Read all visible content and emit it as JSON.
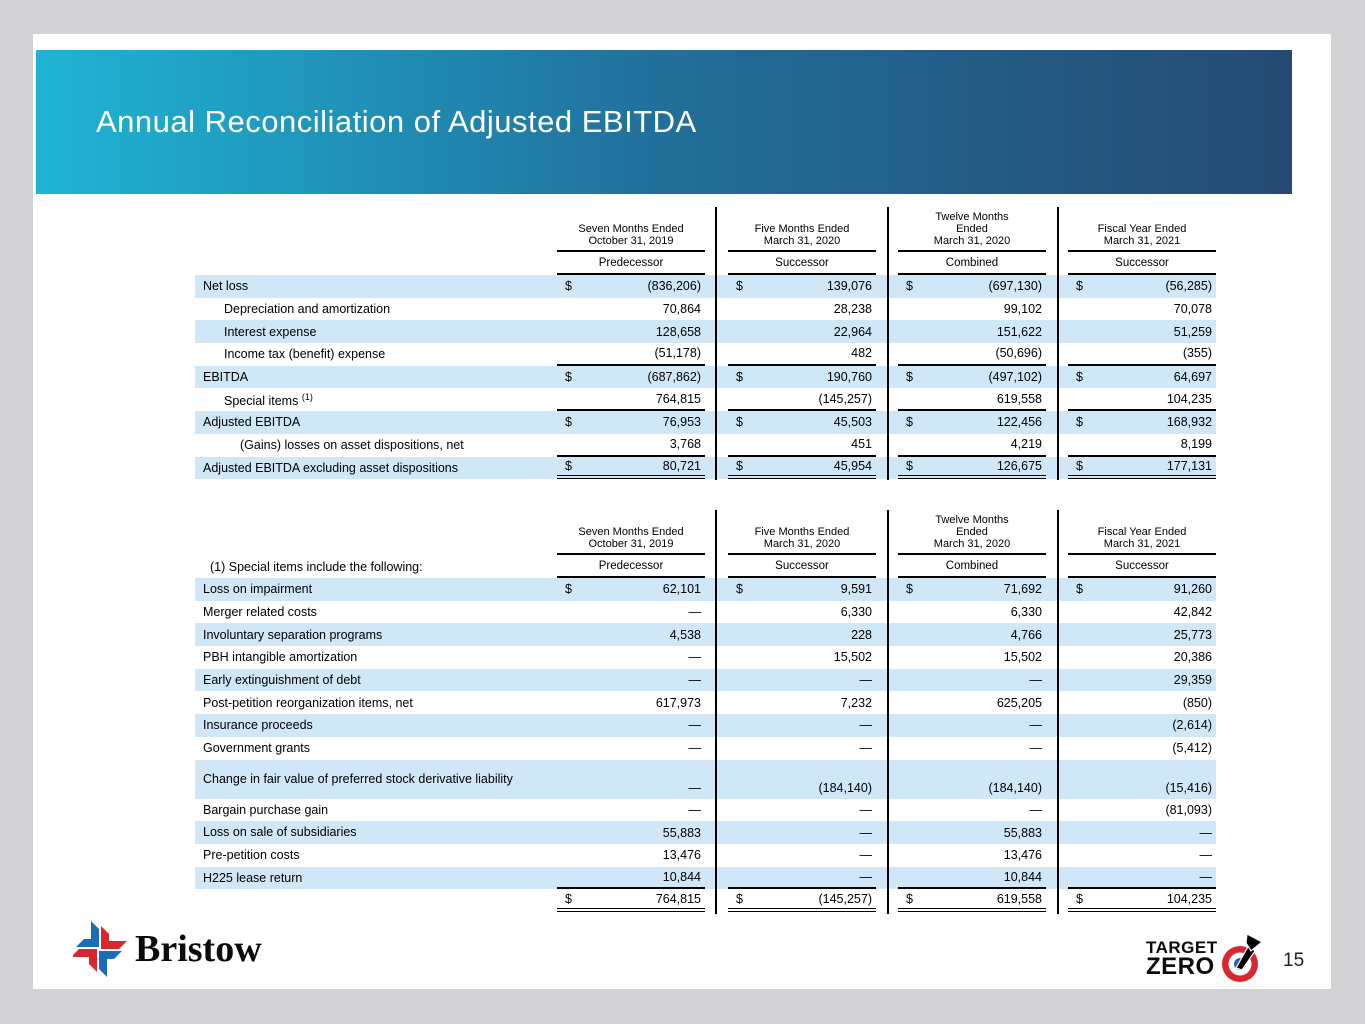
{
  "slide": {
    "title": "Annual Reconciliation of Adjusted EBITDA",
    "page_number": "15"
  },
  "dollar_sign": "$",
  "colors": {
    "header_gradient_start": "#1fb4d5",
    "header_gradient_end": "#254a72",
    "row_highlight": "#cfe7f7",
    "logo_red": "#d7282f",
    "logo_blue": "#1b6db5"
  },
  "columns": [
    {
      "period": [
        "Seven Months Ended",
        "October 31, 2019"
      ],
      "era": "Predecessor"
    },
    {
      "period": [
        "Five Months Ended",
        "March 31, 2020"
      ],
      "era": "Successor"
    },
    {
      "period": [
        "Twelve Months",
        "Ended",
        "March 31, 2020"
      ],
      "era": "Combined"
    },
    {
      "period": [
        "Fiscal Year Ended",
        "March 31, 2021"
      ],
      "era": "Successor"
    }
  ],
  "table1": {
    "rows": [
      {
        "label": "Net loss",
        "indent": 0,
        "dollar": true,
        "highlight": true,
        "rule": "",
        "values": [
          "(836,206)",
          "139,076",
          "(697,130)",
          "(56,285)"
        ]
      },
      {
        "label": "Depreciation and amortization",
        "indent": 1,
        "dollar": false,
        "highlight": false,
        "rule": "",
        "values": [
          "70,864",
          "28,238",
          "99,102",
          "70,078"
        ]
      },
      {
        "label": "Interest expense",
        "indent": 1,
        "dollar": false,
        "highlight": true,
        "rule": "",
        "values": [
          "128,658",
          "22,964",
          "151,622",
          "51,259"
        ]
      },
      {
        "label": "Income tax (benefit) expense",
        "indent": 1,
        "dollar": false,
        "highlight": false,
        "rule": "single",
        "values": [
          "(51,178)",
          "482",
          "(50,696)",
          "(355)"
        ]
      },
      {
        "label": "EBITDA",
        "indent": 0,
        "dollar": true,
        "highlight": true,
        "rule": "",
        "values": [
          "(687,862)",
          "190,760",
          "(497,102)",
          "64,697"
        ]
      },
      {
        "label": "Special items",
        "sup": "(1)",
        "indent": 1,
        "dollar": false,
        "highlight": false,
        "rule": "single",
        "values": [
          "764,815",
          "(145,257)",
          "619,558",
          "104,235"
        ]
      },
      {
        "label": "Adjusted EBITDA",
        "indent": 0,
        "dollar": true,
        "highlight": true,
        "rule": "",
        "values": [
          "76,953",
          "45,503",
          "122,456",
          "168,932"
        ]
      },
      {
        "label": "(Gains) losses on asset dispositions, net",
        "indent": 2,
        "dollar": false,
        "highlight": false,
        "rule": "single",
        "values": [
          "3,768",
          "451",
          "4,219",
          "8,199"
        ]
      },
      {
        "label": "Adjusted EBITDA excluding asset dispositions",
        "indent": 0,
        "dollar": true,
        "highlight": true,
        "rule": "double",
        "values": [
          "80,721",
          "45,954",
          "126,675",
          "177,131"
        ]
      }
    ]
  },
  "table2": {
    "note": "(1) Special items include the following:",
    "rows": [
      {
        "label": "Loss on impairment",
        "indent": 0,
        "dollar": true,
        "highlight": true,
        "rule": "",
        "values": [
          "62,101",
          "9,591",
          "71,692",
          "91,260"
        ]
      },
      {
        "label": "Merger related costs",
        "indent": 0,
        "dollar": false,
        "highlight": false,
        "rule": "",
        "values": [
          "—",
          "6,330",
          "6,330",
          "42,842"
        ]
      },
      {
        "label": "Involuntary separation programs",
        "indent": 0,
        "dollar": false,
        "highlight": true,
        "rule": "",
        "values": [
          "4,538",
          "228",
          "4,766",
          "25,773"
        ]
      },
      {
        "label": "PBH intangible amortization",
        "indent": 0,
        "dollar": false,
        "highlight": false,
        "rule": "",
        "values": [
          "—",
          "15,502",
          "15,502",
          "20,386"
        ]
      },
      {
        "label": "Early extinguishment of debt",
        "indent": 0,
        "dollar": false,
        "highlight": true,
        "rule": "",
        "values": [
          "—",
          "—",
          "—",
          "29,359"
        ]
      },
      {
        "label": "Post-petition reorganization items, net",
        "indent": 0,
        "dollar": false,
        "highlight": false,
        "rule": "",
        "values": [
          "617,973",
          "7,232",
          "625,205",
          "(850)"
        ]
      },
      {
        "label": "Insurance proceeds",
        "indent": 0,
        "dollar": false,
        "highlight": true,
        "rule": "",
        "values": [
          "—",
          "—",
          "—",
          "(2,614)"
        ]
      },
      {
        "label": "Government grants",
        "indent": 0,
        "dollar": false,
        "highlight": false,
        "rule": "",
        "values": [
          "—",
          "—",
          "—",
          "(5,412)"
        ]
      },
      {
        "label": "Change in fair value of preferred stock derivative liability",
        "indent": 0,
        "dollar": false,
        "highlight": true,
        "rule": "",
        "tall": true,
        "values": [
          "—",
          "(184,140)",
          "(184,140)",
          "(15,416)"
        ]
      },
      {
        "label": "Bargain purchase gain",
        "indent": 0,
        "dollar": false,
        "highlight": false,
        "rule": "",
        "values": [
          "—",
          "—",
          "—",
          "(81,093)"
        ]
      },
      {
        "label": "Loss on sale of subsidiaries",
        "indent": 0,
        "dollar": false,
        "highlight": true,
        "rule": "",
        "values": [
          "55,883",
          "—",
          "55,883",
          "—"
        ]
      },
      {
        "label": "Pre-petition costs",
        "indent": 0,
        "dollar": false,
        "highlight": false,
        "rule": "",
        "values": [
          "13,476",
          "—",
          "13,476",
          "—"
        ]
      },
      {
        "label": "H225 lease return",
        "indent": 0,
        "dollar": false,
        "highlight": true,
        "rule": "single",
        "values": [
          "10,844",
          "—",
          "10,844",
          "—"
        ]
      },
      {
        "label": "",
        "indent": 0,
        "dollar": true,
        "highlight": false,
        "rule": "double",
        "values": [
          "764,815",
          "(145,257)",
          "619,558",
          "104,235"
        ]
      }
    ]
  },
  "logos": {
    "bristow_text": "Bristow",
    "target_line1": "TARGET",
    "target_line2": "ZERO"
  }
}
